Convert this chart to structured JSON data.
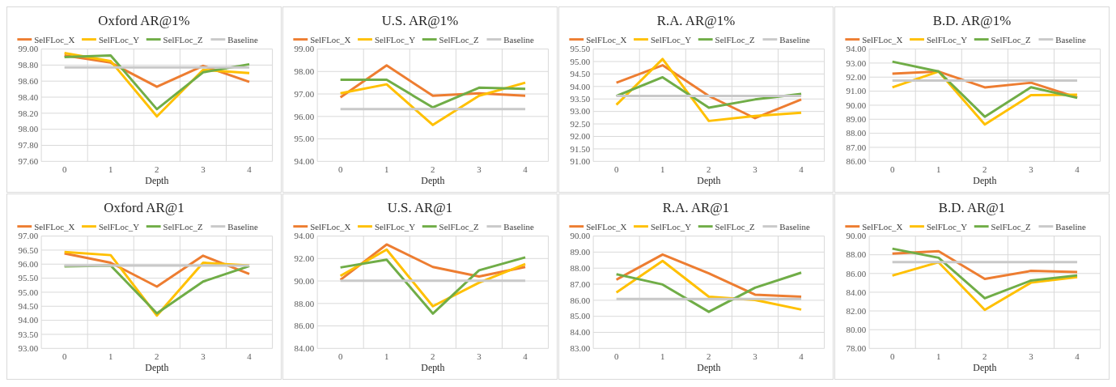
{
  "chart_data": [
    {
      "type": "line",
      "title": "Oxford AR@1%",
      "xlabel": "Depth",
      "categories": [
        "0",
        "1",
        "2",
        "3",
        "4"
      ],
      "legend": "top",
      "grid": true,
      "ylim": [
        97.6,
        99
      ],
      "yticks": [
        {
          "value": 97.6,
          "label": "97.60"
        },
        {
          "value": 97.8,
          "label": "97.80"
        },
        {
          "value": 98,
          "label": "98.00"
        },
        {
          "value": 98.2,
          "label": "98.20"
        },
        {
          "value": 98.4,
          "label": "98.40"
        },
        {
          "value": 98.6,
          "label": "98.60"
        },
        {
          "value": 98.8,
          "label": "98.80"
        },
        {
          "value": 99,
          "label": "99.00"
        }
      ],
      "series": [
        {
          "name": "SelFLoc_X",
          "color": "#ed7d31",
          "values": [
            98.92,
            98.83,
            98.53,
            98.79,
            98.59
          ]
        },
        {
          "name": "SelFLoc_Y",
          "color": "#ffc000",
          "values": [
            98.95,
            98.85,
            98.16,
            98.74,
            98.7
          ]
        },
        {
          "name": "SelFLoc_Z",
          "color": "#70ad47",
          "values": [
            98.9,
            98.92,
            98.25,
            98.71,
            98.81
          ]
        },
        {
          "name": "Baseline",
          "color": "#c9c9c9",
          "values": [
            98.77,
            98.77,
            98.77,
            98.77,
            98.77
          ]
        }
      ]
    },
    {
      "type": "line",
      "title": "U.S. AR@1%",
      "xlabel": "Depth",
      "categories": [
        "0",
        "1",
        "2",
        "3",
        "4"
      ],
      "legend": "top",
      "grid": true,
      "ylim": [
        94,
        99
      ],
      "yticks": [
        {
          "value": 94,
          "label": "94.00"
        },
        {
          "value": 95,
          "label": "95.00"
        },
        {
          "value": 96,
          "label": "96.00"
        },
        {
          "value": 97,
          "label": "97.00"
        },
        {
          "value": 98,
          "label": "98.00"
        },
        {
          "value": 99,
          "label": "99.00"
        }
      ],
      "series": [
        {
          "name": "SelFLoc_X",
          "color": "#ed7d31",
          "values": [
            96.85,
            98.27,
            96.92,
            97.03,
            96.92
          ]
        },
        {
          "name": "SelFLoc_Y",
          "color": "#ffc000",
          "values": [
            97.03,
            97.43,
            95.62,
            96.92,
            97.5
          ]
        },
        {
          "name": "SelFLoc_Z",
          "color": "#70ad47",
          "values": [
            97.63,
            97.63,
            96.4,
            97.28,
            97.23
          ]
        },
        {
          "name": "Baseline",
          "color": "#c9c9c9",
          "values": [
            96.33,
            96.33,
            96.33,
            96.33,
            96.33
          ]
        }
      ]
    },
    {
      "type": "line",
      "title": "R.A. AR@1%",
      "xlabel": "Depth",
      "categories": [
        "0",
        "1",
        "2",
        "3",
        "4"
      ],
      "legend": "top",
      "grid": true,
      "ylim": [
        91,
        95.5
      ],
      "yticks": [
        {
          "value": 91,
          "label": "91.00"
        },
        {
          "value": 91.5,
          "label": "91.50"
        },
        {
          "value": 92,
          "label": "92.00"
        },
        {
          "value": 92.5,
          "label": "92.50"
        },
        {
          "value": 93,
          "label": "93.00"
        },
        {
          "value": 93.5,
          "label": "93.50"
        },
        {
          "value": 94,
          "label": "94.00"
        },
        {
          "value": 94.5,
          "label": "94.50"
        },
        {
          "value": 95,
          "label": "95.00"
        },
        {
          "value": 95.5,
          "label": "95.50"
        }
      ],
      "series": [
        {
          "name": "SelFLoc_X",
          "color": "#ed7d31",
          "values": [
            94.15,
            94.85,
            93.62,
            92.73,
            93.48
          ]
        },
        {
          "name": "SelFLoc_Y",
          "color": "#ffc000",
          "values": [
            93.27,
            95.1,
            92.62,
            92.82,
            92.95
          ]
        },
        {
          "name": "SelFLoc_Z",
          "color": "#70ad47",
          "values": [
            93.62,
            94.37,
            93.15,
            93.48,
            93.7
          ]
        },
        {
          "name": "Baseline",
          "color": "#c9c9c9",
          "values": [
            93.62,
            93.62,
            93.62,
            93.62,
            93.62
          ]
        }
      ]
    },
    {
      "type": "line",
      "title": "B.D. AR@1%",
      "xlabel": "Depth",
      "categories": [
        "0",
        "1",
        "2",
        "3",
        "4"
      ],
      "legend": "top",
      "grid": true,
      "ylim": [
        86,
        94
      ],
      "yticks": [
        {
          "value": 86,
          "label": "86.00"
        },
        {
          "value": 87,
          "label": "87.00"
        },
        {
          "value": 88,
          "label": "88.00"
        },
        {
          "value": 89,
          "label": "89.00"
        },
        {
          "value": 90,
          "label": "90.00"
        },
        {
          "value": 91,
          "label": "91.00"
        },
        {
          "value": 92,
          "label": "92.00"
        },
        {
          "value": 93,
          "label": "93.00"
        },
        {
          "value": 94,
          "label": "94.00"
        }
      ],
      "series": [
        {
          "name": "SelFLoc_X",
          "color": "#ed7d31",
          "values": [
            92.25,
            92.4,
            91.27,
            91.6,
            90.55
          ]
        },
        {
          "name": "SelFLoc_Y",
          "color": "#ffc000",
          "values": [
            91.27,
            92.4,
            88.63,
            90.72,
            90.75
          ]
        },
        {
          "name": "SelFLoc_Z",
          "color": "#70ad47",
          "values": [
            93.1,
            92.4,
            89.18,
            91.28,
            90.52
          ]
        },
        {
          "name": "Baseline",
          "color": "#c9c9c9",
          "values": [
            91.75,
            91.75,
            91.75,
            91.75,
            91.75
          ]
        }
      ]
    },
    {
      "type": "line",
      "title": "Oxford AR@1",
      "xlabel": "Depth",
      "categories": [
        "0",
        "1",
        "2",
        "3",
        "4"
      ],
      "legend": "top",
      "grid": true,
      "ylim": [
        93,
        97
      ],
      "yticks": [
        {
          "value": 93,
          "label": "93.00"
        },
        {
          "value": 93.5,
          "label": "93.50"
        },
        {
          "value": 94,
          "label": "94.00"
        },
        {
          "value": 94.5,
          "label": "94.50"
        },
        {
          "value": 95,
          "label": "95.00"
        },
        {
          "value": 95.5,
          "label": "95.50"
        },
        {
          "value": 96,
          "label": "96.00"
        },
        {
          "value": 96.5,
          "label": "96.50"
        },
        {
          "value": 97,
          "label": "97.00"
        }
      ],
      "series": [
        {
          "name": "SelFLoc_X",
          "color": "#ed7d31",
          "values": [
            96.38,
            96.05,
            95.2,
            96.3,
            95.65
          ]
        },
        {
          "name": "SelFLoc_Y",
          "color": "#ffc000",
          "values": [
            96.43,
            96.32,
            94.17,
            96.05,
            95.95
          ]
        },
        {
          "name": "SelFLoc_Z",
          "color": "#70ad47",
          "values": [
            95.92,
            95.95,
            94.25,
            95.38,
            95.93
          ]
        },
        {
          "name": "Baseline",
          "color": "#c9c9c9",
          "values": [
            95.95,
            95.95,
            95.95,
            95.95,
            95.95
          ]
        }
      ]
    },
    {
      "type": "line",
      "title": "U.S. AR@1",
      "xlabel": "Depth",
      "categories": [
        "0",
        "1",
        "2",
        "3",
        "4"
      ],
      "legend": "top",
      "grid": true,
      "ylim": [
        84,
        94
      ],
      "yticks": [
        {
          "value": 84,
          "label": "84.00"
        },
        {
          "value": 86,
          "label": "86.00"
        },
        {
          "value": 88,
          "label": "88.00"
        },
        {
          "value": 90,
          "label": "90.00"
        },
        {
          "value": 92,
          "label": "92.00"
        },
        {
          "value": 94,
          "label": "94.00"
        }
      ],
      "series": [
        {
          "name": "SelFLoc_X",
          "color": "#ed7d31",
          "values": [
            90.1,
            93.25,
            91.25,
            90.4,
            91.25
          ]
        },
        {
          "name": "SelFLoc_Y",
          "color": "#ffc000",
          "values": [
            90.45,
            92.8,
            87.75,
            89.85,
            91.5
          ]
        },
        {
          "name": "SelFLoc_Z",
          "color": "#70ad47",
          "values": [
            91.2,
            91.9,
            87.1,
            90.95,
            92.1
          ]
        },
        {
          "name": "Baseline",
          "color": "#c9c9c9",
          "values": [
            90.03,
            90.03,
            90.03,
            90.03,
            90.03
          ]
        }
      ]
    },
    {
      "type": "line",
      "title": "R.A. AR@1",
      "xlabel": "Depth",
      "categories": [
        "0",
        "1",
        "2",
        "3",
        "4"
      ],
      "legend": "top",
      "grid": true,
      "ylim": [
        83,
        90
      ],
      "yticks": [
        {
          "value": 83,
          "label": "83.00"
        },
        {
          "value": 84,
          "label": "84.00"
        },
        {
          "value": 85,
          "label": "85.00"
        },
        {
          "value": 86,
          "label": "86.00"
        },
        {
          "value": 87,
          "label": "87.00"
        },
        {
          "value": 88,
          "label": "88.00"
        },
        {
          "value": 89,
          "label": "89.00"
        },
        {
          "value": 90,
          "label": "90.00"
        }
      ],
      "series": [
        {
          "name": "SelFLoc_X",
          "color": "#ed7d31",
          "values": [
            87.28,
            88.85,
            87.68,
            86.35,
            86.22
          ]
        },
        {
          "name": "SelFLoc_Y",
          "color": "#ffc000",
          "values": [
            86.48,
            88.45,
            86.22,
            86.02,
            85.42
          ]
        },
        {
          "name": "SelFLoc_Z",
          "color": "#70ad47",
          "values": [
            87.62,
            86.98,
            85.28,
            86.78,
            87.72
          ]
        },
        {
          "name": "Baseline",
          "color": "#c9c9c9",
          "values": [
            86.08,
            86.08,
            86.08,
            86.08,
            86.08
          ]
        }
      ]
    },
    {
      "type": "line",
      "title": "B.D. AR@1",
      "xlabel": "Depth",
      "categories": [
        "0",
        "1",
        "2",
        "3",
        "4"
      ],
      "legend": "top",
      "grid": true,
      "ylim": [
        78,
        90
      ],
      "yticks": [
        {
          "value": 78,
          "label": "78.00"
        },
        {
          "value": 80,
          "label": "80.00"
        },
        {
          "value": 82,
          "label": "82.00"
        },
        {
          "value": 84,
          "label": "84.00"
        },
        {
          "value": 86,
          "label": "86.00"
        },
        {
          "value": 88,
          "label": "88.00"
        },
        {
          "value": 90,
          "label": "90.00"
        }
      ],
      "series": [
        {
          "name": "SelFLoc_X",
          "color": "#ed7d31",
          "values": [
            88.12,
            88.38,
            85.42,
            86.28,
            86.15
          ]
        },
        {
          "name": "SelFLoc_Y",
          "color": "#ffc000",
          "values": [
            85.78,
            87.2,
            82.12,
            85.02,
            85.62
          ]
        },
        {
          "name": "SelFLoc_Z",
          "color": "#70ad47",
          "values": [
            88.65,
            87.68,
            83.35,
            85.25,
            85.8
          ]
        },
        {
          "name": "Baseline",
          "color": "#c9c9c9",
          "values": [
            87.22,
            87.22,
            87.22,
            87.22,
            87.22
          ]
        }
      ]
    }
  ]
}
